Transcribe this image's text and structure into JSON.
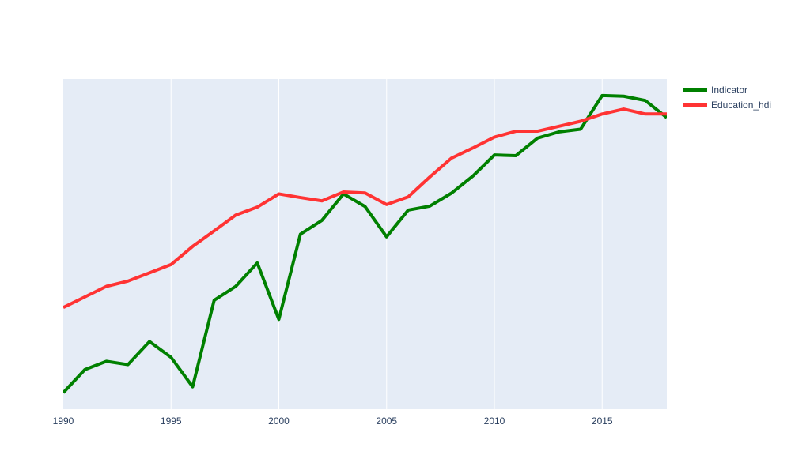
{
  "chart_data": {
    "type": "line",
    "title": "",
    "xlabel": "",
    "ylabel": "",
    "x": [
      1990,
      1991,
      1992,
      1993,
      1994,
      1995,
      1996,
      1997,
      1998,
      1999,
      2000,
      2001,
      2002,
      2003,
      2004,
      2005,
      2006,
      2007,
      2008,
      2009,
      2010,
      2011,
      2012,
      2013,
      2014,
      2015,
      2016,
      2017,
      2018
    ],
    "xlim": [
      1990,
      2018
    ],
    "ylim": [
      0,
      1
    ],
    "x_ticks": [
      1990,
      1995,
      2000,
      2005,
      2010,
      2015
    ],
    "x_tick_labels": [
      "1990",
      "1995",
      "2000",
      "2005",
      "2010",
      "2015"
    ],
    "y_ticks_visible": false,
    "grid": "vertical",
    "legend_position": "top-right",
    "series": [
      {
        "name": "Indicator",
        "color": "#008000",
        "values": [
          0.05,
          0.12,
          0.145,
          0.135,
          0.205,
          0.157,
          0.068,
          0.33,
          0.372,
          0.443,
          0.272,
          0.53,
          0.572,
          0.652,
          0.614,
          0.522,
          0.603,
          0.615,
          0.654,
          0.706,
          0.77,
          0.768,
          0.821,
          0.84,
          0.848,
          0.95,
          0.948,
          0.935,
          0.883
        ]
      },
      {
        "name": "Education_hdi",
        "color": "#ff3333",
        "values": [
          0.308,
          0.34,
          0.372,
          0.388,
          0.413,
          0.438,
          0.493,
          0.54,
          0.588,
          0.612,
          0.652,
          0.641,
          0.631,
          0.658,
          0.655,
          0.62,
          0.643,
          0.703,
          0.76,
          0.791,
          0.824,
          0.842,
          0.842,
          0.857,
          0.872,
          0.894,
          0.909,
          0.894,
          0.894
        ]
      }
    ]
  }
}
